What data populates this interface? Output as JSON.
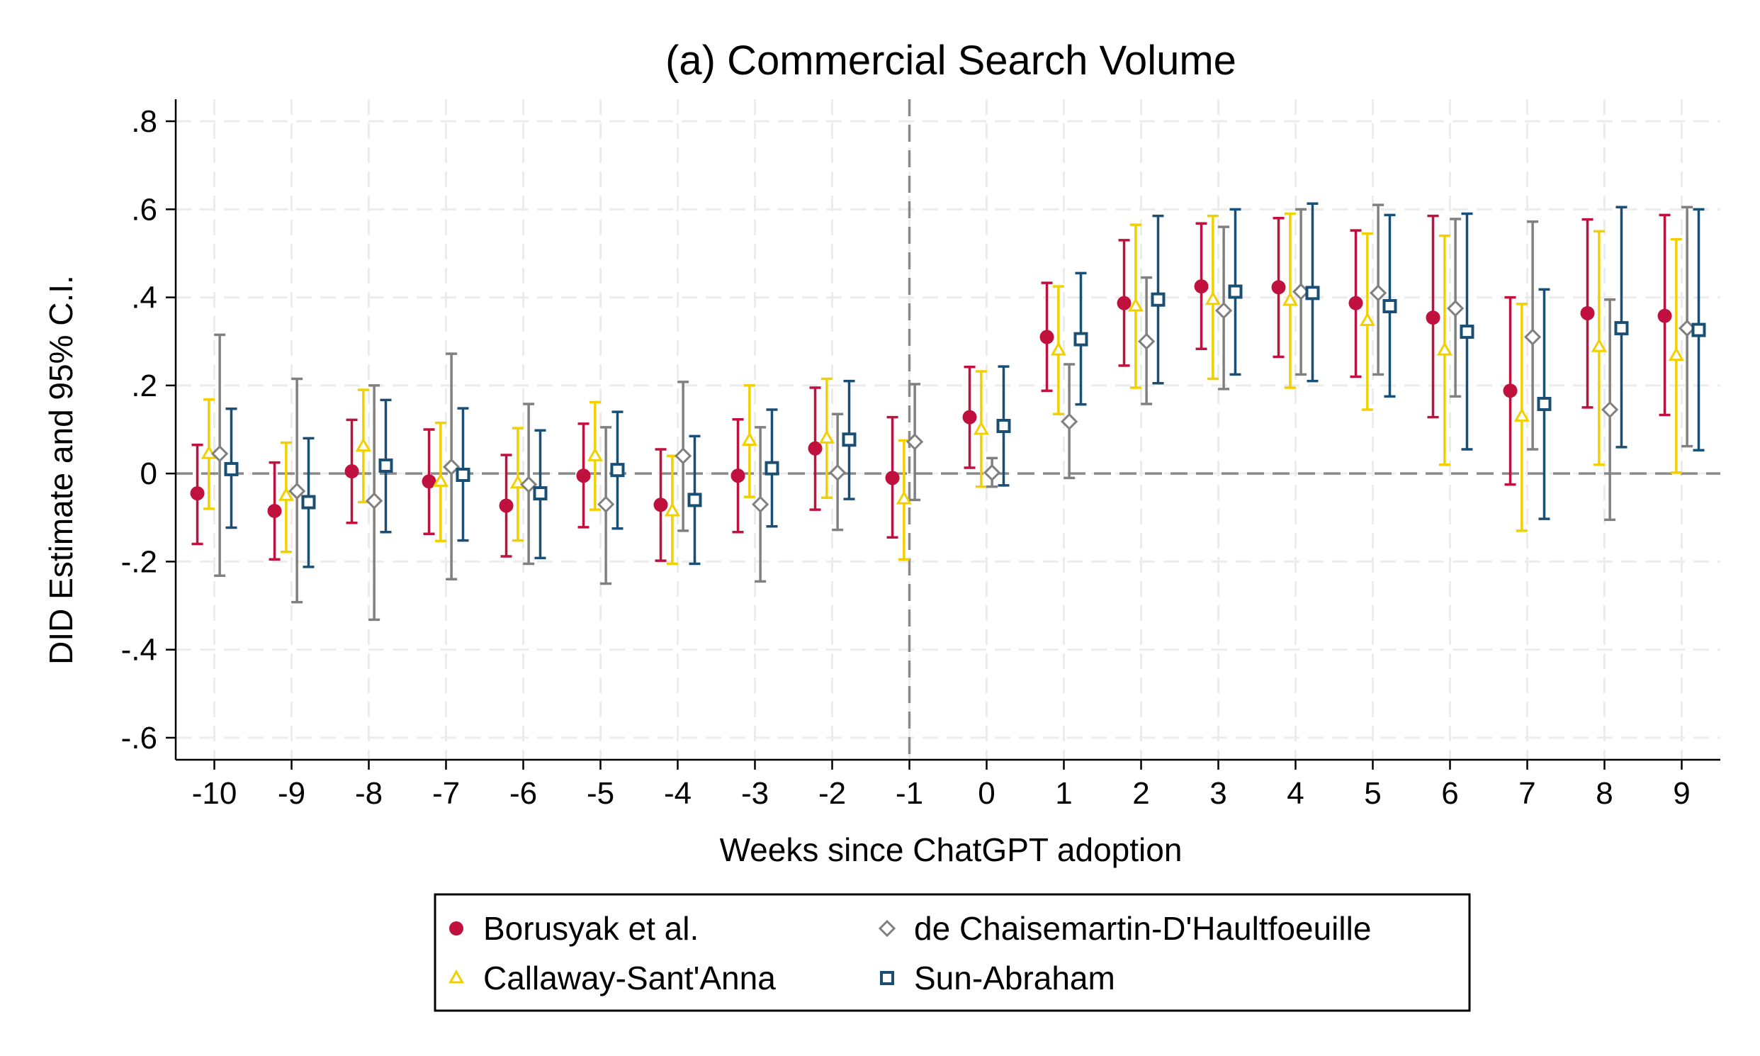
{
  "chart_data": {
    "type": "scatter",
    "title": "(a) Commercial Search Volume",
    "xlabel": "Weeks since ChatGPT adoption",
    "ylabel": "DID Estimate and 95% C.I.",
    "x": [
      -10,
      -9,
      -8,
      -7,
      -6,
      -5,
      -4,
      -3,
      -2,
      -1,
      0,
      1,
      2,
      3,
      4,
      5,
      6,
      7,
      8,
      9
    ],
    "xlim": [
      -10.5,
      9.5
    ],
    "ylim": [
      -0.65,
      0.85
    ],
    "yticks": [
      -0.6,
      -0.4,
      -0.2,
      0,
      0.2,
      0.4,
      0.6,
      0.8
    ],
    "ytick_labels": [
      "-.6",
      "-.4",
      "-.2",
      "0",
      ".2",
      ".4",
      ".6",
      ".8"
    ],
    "xtick_labels": [
      "-10",
      "-9",
      "-8",
      "-7",
      "-6",
      "-5",
      "-4",
      "-3",
      "-2",
      "-1",
      "0",
      "1",
      "2",
      "3",
      "4",
      "5",
      "6",
      "7",
      "8",
      "9"
    ],
    "grid": true,
    "reference_lines": {
      "x": -1,
      "y": 0
    },
    "legend": {
      "placement": "bottom",
      "columns": 2
    },
    "series": [
      {
        "name": "Borusyak et al.",
        "marker": "circle",
        "color": "#c0103e",
        "x": [
          -10,
          -9,
          -8,
          -7,
          -6,
          -5,
          -4,
          -3,
          -2,
          -1,
          0,
          1,
          2,
          3,
          4,
          5,
          6,
          7,
          8,
          9
        ],
        "estimate": [
          -0.045,
          -0.085,
          0.005,
          -0.018,
          -0.073,
          -0.005,
          -0.071,
          -0.005,
          0.057,
          -0.01,
          0.128,
          0.31,
          0.387,
          0.425,
          0.423,
          0.387,
          0.354,
          0.188,
          0.364,
          0.358
        ],
        "ci_low": [
          -0.16,
          -0.195,
          -0.112,
          -0.137,
          -0.188,
          -0.122,
          -0.198,
          -0.133,
          -0.082,
          -0.145,
          0.013,
          0.188,
          0.245,
          0.283,
          0.265,
          0.22,
          0.128,
          -0.025,
          0.15,
          0.133
        ],
        "ci_high": [
          0.065,
          0.025,
          0.122,
          0.1,
          0.042,
          0.113,
          0.055,
          0.123,
          0.195,
          0.128,
          0.242,
          0.433,
          0.53,
          0.568,
          0.58,
          0.552,
          0.585,
          0.4,
          0.577,
          0.587
        ]
      },
      {
        "name": "Callaway-Sant'Anna",
        "marker": "triangle",
        "color": "#f2d000",
        "x": [
          -10,
          -9,
          -8,
          -7,
          -6,
          -5,
          -4,
          -3,
          -2,
          -1,
          0,
          1,
          2,
          3,
          4,
          5,
          6,
          7,
          8,
          9
        ],
        "estimate": [
          0.045,
          -0.05,
          0.062,
          -0.018,
          -0.022,
          0.04,
          -0.085,
          0.075,
          0.08,
          -0.058,
          0.1,
          0.28,
          0.38,
          0.395,
          0.393,
          0.347,
          0.28,
          0.13,
          0.288,
          0.268
        ],
        "ci_low": [
          -0.08,
          -0.178,
          -0.065,
          -0.153,
          -0.152,
          -0.082,
          -0.205,
          -0.053,
          -0.055,
          -0.195,
          -0.03,
          0.135,
          0.195,
          0.215,
          0.195,
          0.145,
          0.02,
          -0.13,
          0.02,
          0.002
        ],
        "ci_high": [
          0.168,
          0.07,
          0.19,
          0.115,
          0.103,
          0.162,
          0.04,
          0.2,
          0.215,
          0.075,
          0.232,
          0.425,
          0.565,
          0.585,
          0.59,
          0.545,
          0.54,
          0.385,
          0.55,
          0.532
        ]
      },
      {
        "name": "de Chaisemartin-D'Haultfoeuille",
        "marker": "diamond",
        "color": "#808080",
        "x": [
          -10,
          -9,
          -8,
          -7,
          -6,
          -5,
          -4,
          -3,
          -2,
          -1,
          0,
          1,
          2,
          3,
          4,
          5,
          6,
          7,
          8,
          9
        ],
        "estimate": [
          0.045,
          -0.04,
          -0.062,
          0.015,
          -0.025,
          -0.07,
          0.04,
          -0.07,
          0.002,
          0.072,
          0.002,
          0.118,
          0.3,
          0.37,
          0.413,
          0.41,
          0.375,
          0.31,
          0.145,
          0.33
        ],
        "ci_low": [
          -0.232,
          -0.292,
          -0.332,
          -0.24,
          -0.205,
          -0.25,
          -0.13,
          -0.245,
          -0.128,
          -0.06,
          -0.03,
          -0.01,
          0.158,
          0.192,
          0.225,
          0.225,
          0.175,
          0.055,
          -0.105,
          0.062
        ],
        "ci_high": [
          0.315,
          0.215,
          0.2,
          0.272,
          0.158,
          0.105,
          0.208,
          0.105,
          0.135,
          0.203,
          0.035,
          0.248,
          0.445,
          0.56,
          0.6,
          0.61,
          0.578,
          0.572,
          0.395,
          0.605
        ]
      },
      {
        "name": "Sun-Abraham",
        "marker": "square",
        "color": "#1a4f75",
        "x": [
          -10,
          -9,
          -8,
          -7,
          -6,
          -5,
          -4,
          -3,
          -2,
          -1,
          0,
          1,
          2,
          3,
          4,
          5,
          6,
          7,
          8,
          9
        ],
        "estimate": [
          0.01,
          -0.065,
          0.018,
          -0.003,
          -0.045,
          0.008,
          -0.06,
          0.012,
          0.077,
          null,
          0.108,
          0.305,
          0.395,
          0.413,
          0.41,
          0.38,
          0.322,
          0.158,
          0.33,
          0.326
        ],
        "ci_low": [
          -0.123,
          -0.212,
          -0.133,
          -0.152,
          -0.192,
          -0.125,
          -0.205,
          -0.12,
          -0.058,
          null,
          -0.027,
          0.157,
          0.205,
          0.225,
          0.21,
          0.175,
          0.055,
          -0.103,
          0.06,
          0.053
        ],
        "ci_high": [
          0.147,
          0.08,
          0.167,
          0.148,
          0.098,
          0.14,
          0.085,
          0.145,
          0.21,
          null,
          0.243,
          0.455,
          0.585,
          0.6,
          0.613,
          0.587,
          0.59,
          0.418,
          0.605,
          0.6
        ]
      }
    ]
  }
}
